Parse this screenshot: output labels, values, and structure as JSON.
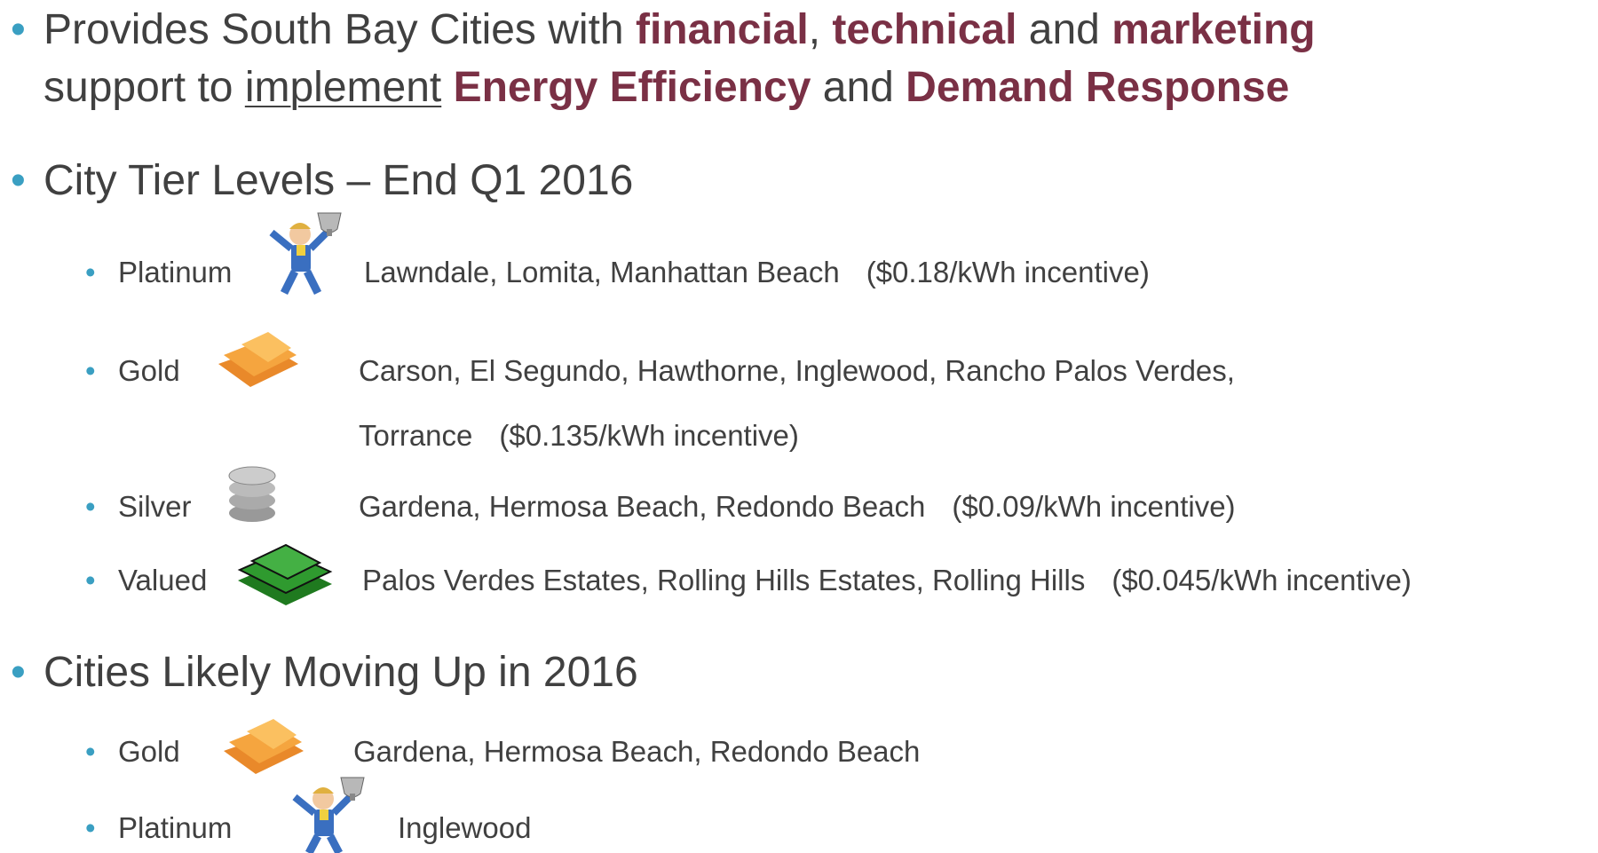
{
  "intro": {
    "lines": [
      [
        {
          "text": "Provides South Bay Cities with "
        },
        {
          "text": "financial",
          "bold": true
        },
        {
          "text": ", "
        },
        {
          "text": "technical",
          "bold": true
        },
        {
          "text": " and "
        },
        {
          "text": "marketing",
          "bold": true
        }
      ],
      [
        {
          "text": "support to "
        },
        {
          "text": "implement",
          "underline": true
        },
        {
          "text": " "
        },
        {
          "text": "Energy Efficiency",
          "bold": true
        },
        {
          "text": " and "
        },
        {
          "text": "Demand Response",
          "bold": true
        }
      ]
    ]
  },
  "sections": [
    {
      "heading": "City Tier Levels – End Q1 2016",
      "items": [
        {
          "tier": "Platinum",
          "cities": [
            "Lawndale, Lomita, Manhattan Beach"
          ],
          "incentive": "($0.18/kWh incentive)"
        },
        {
          "tier": "Gold",
          "cities": [
            "Carson, El Segundo, Hawthorne, Inglewood, Rancho Palos Verdes,",
            "Torrance"
          ],
          "incentive": "($0.135/kWh incentive)"
        },
        {
          "tier": "Silver",
          "cities": [
            "Gardena, Hermosa Beach, Redondo Beach"
          ],
          "incentive": "($0.09/kWh incentive)"
        },
        {
          "tier": "Valued",
          "cities": [
            "Palos Verdes Estates, Rolling Hills Estates, Rolling Hills"
          ],
          "incentive": "($0.045/kWh incentive)"
        }
      ]
    },
    {
      "heading": "Cities Likely Moving Up in 2016",
      "items": [
        {
          "tier": "Gold",
          "cities": [
            "Gardena, Hermosa Beach, Redondo Beach"
          ]
        },
        {
          "tier": "Platinum",
          "cities": [
            "Inglewood"
          ]
        }
      ]
    }
  ]
}
